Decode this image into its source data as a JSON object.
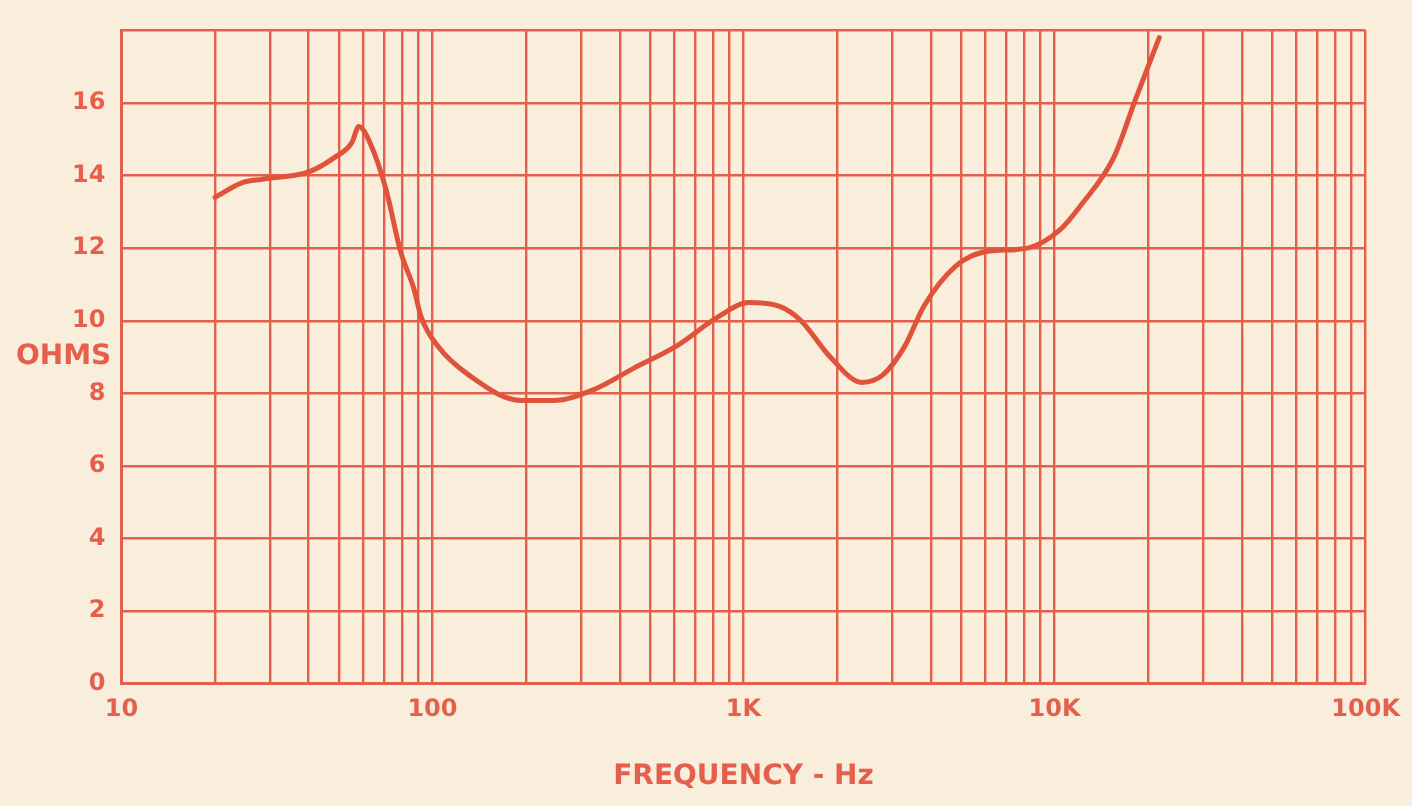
{
  "chart_data": {
    "type": "line",
    "xlabel": "FREQUENCY - Hz",
    "ylabel": "OHMS",
    "x": [
      20,
      24.4,
      28.4,
      40,
      48.5,
      55,
      58,
      63,
      71,
      79,
      87,
      92,
      104,
      131,
      193,
      244,
      330,
      446,
      608,
      826,
      1040,
      1300,
      1530,
      1900,
      2400,
      2800,
      3300,
      3800,
      4800,
      6000,
      8200,
      10400,
      12200,
      15500,
      18200,
      21700
    ],
    "series": [
      {
        "color": "#e0533a",
        "values": [
          13.4,
          13.8,
          13.9,
          14.1,
          14.5,
          14.9,
          15.35,
          14.9,
          13.6,
          11.9,
          10.9,
          10.1,
          9.3,
          8.5,
          7.8,
          7.8,
          8.1,
          8.7,
          9.3,
          10.1,
          10.5,
          10.4,
          10.0,
          9.0,
          8.3,
          8.5,
          9.3,
          10.4,
          11.5,
          11.9,
          12.0,
          12.5,
          13.2,
          14.5,
          16.1,
          17.8
        ]
      }
    ],
    "log": "x",
    "xlim": [
      10,
      100000
    ],
    "ylim": [
      0,
      18
    ],
    "xticks": [
      {
        "value": 10,
        "label": "10"
      },
      {
        "value": 20,
        "label": null
      },
      {
        "value": 30,
        "label": null
      },
      {
        "value": 40,
        "label": null
      },
      {
        "value": 50,
        "label": null
      },
      {
        "value": 60,
        "label": null
      },
      {
        "value": 70,
        "label": null
      },
      {
        "value": 80,
        "label": null
      },
      {
        "value": 90,
        "label": null
      },
      {
        "value": 100,
        "label": "100"
      },
      {
        "value": 200,
        "label": null
      },
      {
        "value": 300,
        "label": null
      },
      {
        "value": 400,
        "label": null
      },
      {
        "value": 500,
        "label": null
      },
      {
        "value": 600,
        "label": null
      },
      {
        "value": 700,
        "label": null
      },
      {
        "value": 800,
        "label": null
      },
      {
        "value": 900,
        "label": null
      },
      {
        "value": 1000,
        "label": "1K"
      },
      {
        "value": 2000,
        "label": null
      },
      {
        "value": 3000,
        "label": null
      },
      {
        "value": 4000,
        "label": null
      },
      {
        "value": 5000,
        "label": null
      },
      {
        "value": 6000,
        "label": null
      },
      {
        "value": 7000,
        "label": null
      },
      {
        "value": 8000,
        "label": null
      },
      {
        "value": 9000,
        "label": null
      },
      {
        "value": 10000,
        "label": "10K"
      },
      {
        "value": 20000,
        "label": null
      },
      {
        "value": 30000,
        "label": null
      },
      {
        "value": 40000,
        "label": null
      },
      {
        "value": 50000,
        "label": null
      },
      {
        "value": 60000,
        "label": null
      },
      {
        "value": 70000,
        "label": null
      },
      {
        "value": 80000,
        "label": null
      },
      {
        "value": 90000,
        "label": null
      },
      {
        "value": 100000,
        "label": "100K"
      }
    ],
    "yticks": [
      0,
      2,
      4,
      6,
      8,
      10,
      12,
      14,
      16,
      {
        "value": 18,
        "label": null
      }
    ],
    "grid": true,
    "legend": false,
    "marker": "none",
    "line_style": "solid"
  }
}
